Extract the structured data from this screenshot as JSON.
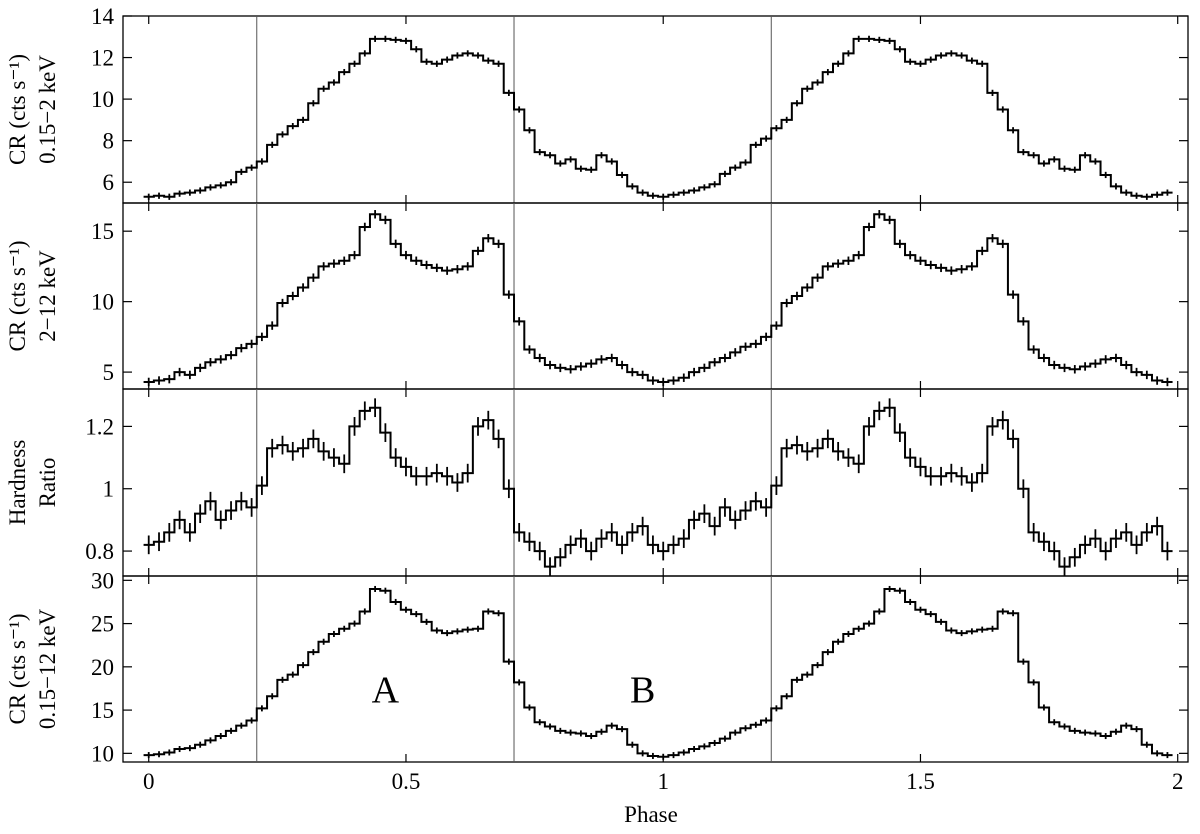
{
  "figure": {
    "xlabel": "Phase",
    "x_ticks": [
      "0",
      "0.5",
      "1",
      "1.5",
      "2"
    ],
    "x_tick_values": [
      0,
      0.5,
      1,
      1.5,
      2
    ],
    "xlim": [
      -0.05,
      2.02
    ],
    "region_labels": [
      {
        "text": "A",
        "panel": 3,
        "x": 0.46,
        "y": 17.5
      },
      {
        "text": "B",
        "panel": 3,
        "x": 0.96,
        "y": 17.5
      }
    ],
    "vertical_lines": [
      0.21,
      0.71,
      1.21
    ]
  },
  "chart_data": [
    {
      "type": "line",
      "style": "step-with-errorbars",
      "ylabel_lines": [
        "CR (cts s⁻¹)",
        "0.15−2 keV"
      ],
      "ylim": [
        5.0,
        14.0
      ],
      "y_ticks": [
        6,
        8,
        10,
        12,
        14
      ],
      "x": [
        0.0,
        0.02,
        0.04,
        0.06,
        0.08,
        0.1,
        0.12,
        0.14,
        0.16,
        0.18,
        0.2,
        0.22,
        0.24,
        0.26,
        0.28,
        0.3,
        0.32,
        0.34,
        0.36,
        0.38,
        0.4,
        0.42,
        0.44,
        0.46,
        0.48,
        0.5,
        0.52,
        0.54,
        0.56,
        0.58,
        0.6,
        0.62,
        0.64,
        0.66,
        0.68,
        0.7,
        0.72,
        0.74,
        0.76,
        0.78,
        0.8,
        0.82,
        0.84,
        0.86,
        0.88,
        0.9,
        0.92,
        0.94,
        0.96,
        0.98,
        1.0,
        1.02,
        1.04,
        1.06,
        1.08,
        1.1,
        1.12,
        1.14,
        1.16,
        1.18,
        1.2,
        1.22,
        1.24,
        1.26,
        1.28,
        1.3,
        1.32,
        1.34,
        1.36,
        1.38,
        1.4,
        1.42,
        1.44,
        1.46,
        1.48,
        1.5,
        1.52,
        1.54,
        1.56,
        1.58,
        1.6,
        1.62,
        1.64,
        1.66,
        1.68,
        1.7,
        1.72,
        1.74,
        1.76,
        1.78,
        1.8,
        1.82,
        1.84,
        1.86,
        1.88,
        1.9,
        1.92,
        1.94,
        1.96,
        1.98
      ],
      "y": [
        5.3,
        5.35,
        5.3,
        5.45,
        5.5,
        5.6,
        5.75,
        5.85,
        6.0,
        6.5,
        6.7,
        7.0,
        7.8,
        8.3,
        8.7,
        9.0,
        9.8,
        10.5,
        10.8,
        11.3,
        11.7,
        12.2,
        12.9,
        12.9,
        12.85,
        12.8,
        12.4,
        11.8,
        11.7,
        11.9,
        12.1,
        12.2,
        12.1,
        11.85,
        11.7,
        10.3,
        9.5,
        8.5,
        7.45,
        7.3,
        6.9,
        7.1,
        6.65,
        6.6,
        7.3,
        7.0,
        6.35,
        5.8,
        5.5,
        5.35,
        5.3,
        5.4,
        5.5,
        5.6,
        5.75,
        5.9,
        6.4,
        6.7,
        6.95,
        7.8,
        8.1,
        8.6,
        9.0,
        9.8,
        10.5,
        10.8,
        11.3,
        11.7,
        12.2,
        12.9,
        12.9,
        12.85,
        12.8,
        12.4,
        11.8,
        11.7,
        11.9,
        12.1,
        12.2,
        12.1,
        11.85,
        11.7,
        10.3,
        9.5,
        8.5,
        7.45,
        7.3,
        6.9,
        7.1,
        6.65,
        6.6,
        7.3,
        7.0,
        6.35,
        5.8,
        5.5,
        5.35,
        5.3,
        5.4,
        5.5
      ],
      "err": 0.15
    },
    {
      "type": "line",
      "style": "step-with-errorbars",
      "ylabel_lines": [
        "CR (cts s⁻¹)",
        "2−12 keV"
      ],
      "ylim": [
        3.8,
        17.0
      ],
      "y_ticks": [
        5,
        10,
        15
      ],
      "x": [
        0.0,
        0.02,
        0.04,
        0.06,
        0.08,
        0.1,
        0.12,
        0.14,
        0.16,
        0.18,
        0.2,
        0.22,
        0.24,
        0.26,
        0.28,
        0.3,
        0.32,
        0.34,
        0.36,
        0.38,
        0.4,
        0.42,
        0.44,
        0.46,
        0.48,
        0.5,
        0.52,
        0.54,
        0.56,
        0.58,
        0.6,
        0.62,
        0.64,
        0.66,
        0.68,
        0.7,
        0.72,
        0.74,
        0.76,
        0.78,
        0.8,
        0.82,
        0.84,
        0.86,
        0.88,
        0.9,
        0.92,
        0.94,
        0.96,
        0.98,
        1.0,
        1.02,
        1.04,
        1.06,
        1.08,
        1.1,
        1.12,
        1.14,
        1.16,
        1.18,
        1.2,
        1.22,
        1.24,
        1.26,
        1.28,
        1.3,
        1.32,
        1.34,
        1.36,
        1.38,
        1.4,
        1.42,
        1.44,
        1.46,
        1.48,
        1.5,
        1.52,
        1.54,
        1.56,
        1.58,
        1.6,
        1.62,
        1.64,
        1.66,
        1.68,
        1.7,
        1.72,
        1.74,
        1.76,
        1.78,
        1.8,
        1.82,
        1.84,
        1.86,
        1.88,
        1.9,
        1.92,
        1.94,
        1.96,
        1.98
      ],
      "y": [
        4.3,
        4.4,
        4.5,
        5.0,
        4.8,
        5.3,
        5.7,
        5.9,
        6.2,
        6.7,
        7.0,
        7.5,
        8.3,
        9.9,
        10.4,
        11.0,
        11.7,
        12.5,
        12.7,
        12.9,
        13.3,
        15.3,
        16.2,
        15.8,
        14.1,
        13.3,
        12.9,
        12.6,
        12.4,
        12.2,
        12.3,
        12.5,
        13.6,
        14.5,
        14.1,
        10.5,
        8.6,
        6.6,
        6.0,
        5.5,
        5.3,
        5.2,
        5.4,
        5.6,
        5.9,
        6.0,
        5.5,
        5.0,
        4.8,
        4.4,
        4.3,
        4.4,
        4.6,
        5.0,
        5.3,
        5.7,
        6.0,
        6.4,
        6.8,
        7.0,
        7.5,
        8.3,
        9.9,
        10.4,
        11.0,
        11.7,
        12.5,
        12.7,
        12.9,
        13.3,
        15.3,
        16.2,
        15.8,
        14.1,
        13.3,
        12.9,
        12.6,
        12.4,
        12.2,
        12.3,
        12.5,
        13.6,
        14.5,
        14.1,
        10.5,
        8.6,
        6.6,
        6.0,
        5.5,
        5.3,
        5.2,
        5.4,
        5.6,
        5.9,
        6.0,
        5.5,
        5.0,
        4.8,
        4.4,
        4.3
      ],
      "err": 0.3
    },
    {
      "type": "line",
      "style": "step-with-errorbars",
      "ylabel_lines": [
        "Hardness",
        "Ratio"
      ],
      "ylim": [
        0.72,
        1.32
      ],
      "y_ticks": [
        0.8,
        1,
        1.2
      ],
      "y_tick_labels": [
        "0.8",
        "1",
        "1.2"
      ],
      "x": [
        0.0,
        0.02,
        0.04,
        0.06,
        0.08,
        0.1,
        0.12,
        0.14,
        0.16,
        0.18,
        0.2,
        0.22,
        0.24,
        0.26,
        0.28,
        0.3,
        0.32,
        0.34,
        0.36,
        0.38,
        0.4,
        0.42,
        0.44,
        0.46,
        0.48,
        0.5,
        0.52,
        0.54,
        0.56,
        0.58,
        0.6,
        0.62,
        0.64,
        0.66,
        0.68,
        0.7,
        0.72,
        0.74,
        0.76,
        0.78,
        0.8,
        0.82,
        0.84,
        0.86,
        0.88,
        0.9,
        0.92,
        0.94,
        0.96,
        0.98,
        1.0,
        1.02,
        1.04,
        1.06,
        1.08,
        1.1,
        1.12,
        1.14,
        1.16,
        1.18,
        1.2,
        1.22,
        1.24,
        1.26,
        1.28,
        1.3,
        1.32,
        1.34,
        1.36,
        1.38,
        1.4,
        1.42,
        1.44,
        1.46,
        1.48,
        1.5,
        1.52,
        1.54,
        1.56,
        1.58,
        1.6,
        1.62,
        1.64,
        1.66,
        1.68,
        1.7,
        1.72,
        1.74,
        1.76,
        1.78,
        1.8,
        1.82,
        1.84,
        1.86,
        1.88,
        1.9,
        1.92,
        1.94,
        1.96,
        1.98
      ],
      "y": [
        0.82,
        0.83,
        0.86,
        0.9,
        0.86,
        0.92,
        0.96,
        0.9,
        0.93,
        0.96,
        0.94,
        1.01,
        1.13,
        1.14,
        1.12,
        1.13,
        1.16,
        1.12,
        1.1,
        1.08,
        1.2,
        1.25,
        1.26,
        1.18,
        1.1,
        1.07,
        1.04,
        1.04,
        1.05,
        1.04,
        1.02,
        1.05,
        1.2,
        1.22,
        1.16,
        1.0,
        0.86,
        0.83,
        0.8,
        0.75,
        0.78,
        0.82,
        0.84,
        0.8,
        0.84,
        0.86,
        0.82,
        0.86,
        0.88,
        0.82,
        0.8,
        0.82,
        0.84,
        0.9,
        0.92,
        0.88,
        0.94,
        0.9,
        0.93,
        0.96,
        0.94,
        1.01,
        1.13,
        1.14,
        1.12,
        1.13,
        1.16,
        1.12,
        1.1,
        1.08,
        1.2,
        1.25,
        1.26,
        1.18,
        1.1,
        1.07,
        1.04,
        1.04,
        1.05,
        1.04,
        1.02,
        1.05,
        1.2,
        1.22,
        1.16,
        1.0,
        0.86,
        0.83,
        0.8,
        0.75,
        0.78,
        0.82,
        0.84,
        0.8,
        0.84,
        0.86,
        0.82,
        0.86,
        0.88,
        0.8
      ],
      "err": 0.03
    },
    {
      "type": "line",
      "style": "step-with-errorbars",
      "ylabel_lines": [
        "CR (cts s⁻¹)",
        "0.15−12 keV"
      ],
      "ylim": [
        9.0,
        30.5
      ],
      "y_ticks": [
        10,
        15,
        20,
        25,
        30
      ],
      "x": [
        0.0,
        0.02,
        0.04,
        0.06,
        0.08,
        0.1,
        0.12,
        0.14,
        0.16,
        0.18,
        0.2,
        0.22,
        0.24,
        0.26,
        0.28,
        0.3,
        0.32,
        0.34,
        0.36,
        0.38,
        0.4,
        0.42,
        0.44,
        0.46,
        0.48,
        0.5,
        0.52,
        0.54,
        0.56,
        0.58,
        0.6,
        0.62,
        0.64,
        0.66,
        0.68,
        0.7,
        0.72,
        0.74,
        0.76,
        0.78,
        0.8,
        0.82,
        0.84,
        0.86,
        0.88,
        0.9,
        0.92,
        0.94,
        0.96,
        0.98,
        1.0,
        1.02,
        1.04,
        1.06,
        1.08,
        1.1,
        1.12,
        1.14,
        1.16,
        1.18,
        1.2,
        1.22,
        1.24,
        1.26,
        1.28,
        1.3,
        1.32,
        1.34,
        1.36,
        1.38,
        1.4,
        1.42,
        1.44,
        1.46,
        1.48,
        1.5,
        1.52,
        1.54,
        1.56,
        1.58,
        1.6,
        1.62,
        1.64,
        1.66,
        1.68,
        1.7,
        1.72,
        1.74,
        1.76,
        1.78,
        1.8,
        1.82,
        1.84,
        1.86,
        1.88,
        1.9,
        1.92,
        1.94,
        1.96,
        1.98
      ],
      "y": [
        9.8,
        9.9,
        10.1,
        10.5,
        10.6,
        11.0,
        11.5,
        12.0,
        12.6,
        13.2,
        13.8,
        15.2,
        16.6,
        18.5,
        19.1,
        20.2,
        21.7,
        22.9,
        23.8,
        24.4,
        25.0,
        26.4,
        29.0,
        28.8,
        27.5,
        26.6,
        26.1,
        25.2,
        24.2,
        23.9,
        24.1,
        24.3,
        24.4,
        26.4,
        26.2,
        20.6,
        18.2,
        15.3,
        13.6,
        13.1,
        12.6,
        12.4,
        12.3,
        12.0,
        12.5,
        13.2,
        12.8,
        11.0,
        10.0,
        9.7,
        9.6,
        9.8,
        10.1,
        10.5,
        10.8,
        11.2,
        11.7,
        12.4,
        12.9,
        13.3,
        13.8,
        15.2,
        16.6,
        18.5,
        19.1,
        20.2,
        21.7,
        22.9,
        23.8,
        24.4,
        25.0,
        26.4,
        29.0,
        28.8,
        27.5,
        26.6,
        26.1,
        25.2,
        24.2,
        23.9,
        24.1,
        24.3,
        24.4,
        26.4,
        26.2,
        20.6,
        18.2,
        15.3,
        13.6,
        13.1,
        12.6,
        12.4,
        12.3,
        12.0,
        12.5,
        13.2,
        12.8,
        11.0,
        10.0,
        9.8
      ],
      "err": 0.35
    }
  ]
}
